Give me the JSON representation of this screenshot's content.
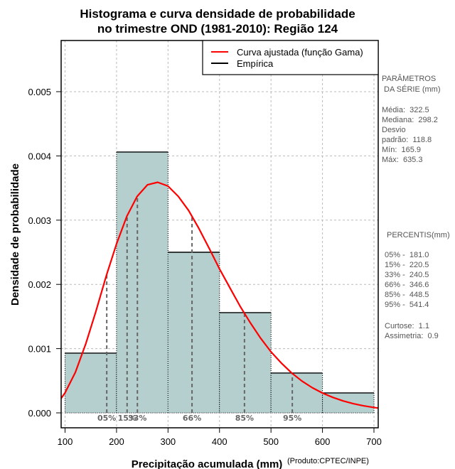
{
  "chart_data": {
    "type": "bar",
    "subtype": "histogram-with-density-curve",
    "title": [
      "Histograma e curva densidade de probabilidade",
      "no trimestre OND (1981-2010): Região 124"
    ],
    "xlabel": "Precipitação acumulada (mm)",
    "ylabel": "Densidade de probabilidade",
    "credit": "(Produto:CPTEC/INPE)",
    "xlim": [
      93,
      708
    ],
    "ylim": [
      -0.00025,
      0.0058
    ],
    "xticks": [
      100,
      200,
      300,
      400,
      500,
      600,
      700
    ],
    "xtick_labels": [
      "100",
      "200",
      "300",
      "400",
      "500",
      "600",
      "700"
    ],
    "yticks": [
      0,
      0.001,
      0.002,
      0.003,
      0.004,
      0.005
    ],
    "ytick_labels": [
      "0.000",
      "0.001",
      "0.002",
      "0.003",
      "0.004",
      "0.005"
    ],
    "grid": true,
    "bins": [
      {
        "from": 100,
        "to": 200,
        "density": 0.00093
      },
      {
        "from": 200,
        "to": 300,
        "density": 0.00406
      },
      {
        "from": 300,
        "to": 400,
        "density": 0.0025
      },
      {
        "from": 400,
        "to": 500,
        "density": 0.00156
      },
      {
        "from": 500,
        "to": 600,
        "density": 0.00062
      },
      {
        "from": 600,
        "to": 700,
        "density": 0.00031
      }
    ],
    "bar_color": "#b5cfcf",
    "curve": {
      "name": "Curva ajustada (função Gama)",
      "color": "#ff0000",
      "x": [
        90,
        100,
        120,
        140,
        160,
        180,
        200,
        220,
        240,
        260,
        280,
        300,
        320,
        340,
        360,
        380,
        400,
        420,
        440,
        460,
        480,
        500,
        520,
        540,
        560,
        580,
        600,
        620,
        640,
        660,
        680,
        700,
        710
      ],
      "y": [
        0.000199,
        0.000313,
        0.000631,
        0.00107,
        0.00158,
        0.00213,
        0.00263,
        0.00306,
        0.00337,
        0.00355,
        0.00359,
        0.00353,
        0.00337,
        0.00315,
        0.00287,
        0.00256,
        0.00224,
        0.00195,
        0.00166,
        0.0014,
        0.00116,
        0.00095,
        0.000776,
        0.000623,
        0.000496,
        0.000393,
        0.000309,
        0.000241,
        0.000186,
        0.000143,
        0.00011,
        8.4e-05,
        7.3e-05
      ]
    },
    "percentile_lines": [
      {
        "label": "05%",
        "value": 181.0,
        "display": "05%"
      },
      {
        "label": "15%",
        "value": 220.5,
        "display": "15%"
      },
      {
        "label": "33%",
        "value": 240.5,
        "display": "33%"
      },
      {
        "label": "66%",
        "value": 346.6,
        "display": "66%"
      },
      {
        "label": "85%",
        "value": 448.5,
        "display": "85%"
      },
      {
        "label": "95%",
        "value": 541.4,
        "display": "95%"
      }
    ],
    "legend": {
      "position": "top-right",
      "entries": [
        {
          "label": "Curva ajustada (função Gama)",
          "color": "#ff0000"
        },
        {
          "label": "Empírica",
          "color": "#000000"
        }
      ]
    }
  },
  "side_panel": {
    "params_title": [
      "PARÂMETROS",
      " DA SÉRIE (mm)"
    ],
    "params": [
      "Média:  322.5",
      "Mediana:  298.2",
      "Desvio",
      "padrão:  118.8",
      "Mín:  165.9",
      "Máx:  635.3"
    ],
    "percentis_title": "PERCENTIS(mm)",
    "percentis": [
      "05% -  181.0",
      "15% -  220.5",
      "33% -  240.5",
      "66% -  346.6",
      "85% -  448.5",
      "95% -  541.4"
    ],
    "stats": [
      "Curtose:  1.1",
      "Assimetria:  0.9"
    ]
  }
}
